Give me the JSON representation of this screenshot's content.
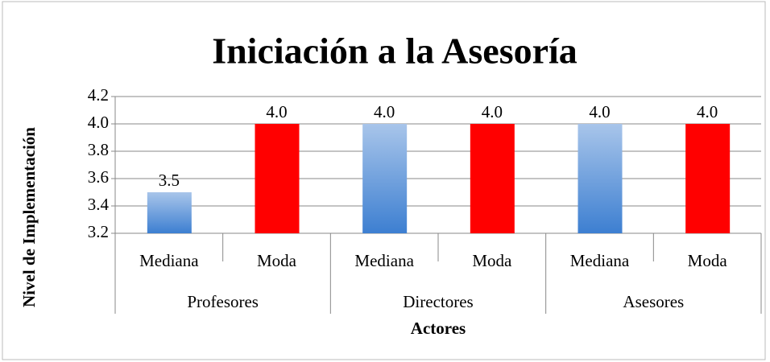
{
  "chart_data": {
    "type": "bar",
    "title": "Iniciación a la Asesoría",
    "x_label": "Actores",
    "y_label": "Nivel de Implementación",
    "categories": [
      "Mediana",
      "Moda",
      "Mediana",
      "Moda",
      "Mediana",
      "Moda"
    ],
    "groups": [
      "Profesores",
      "Directores",
      "Asesores"
    ],
    "values": [
      3.5,
      4,
      4,
      4,
      4,
      4
    ],
    "value_labels": [
      "3.5",
      "4.0",
      "4.0",
      "4.0",
      "4.0",
      "4.0"
    ],
    "colors": [
      "#3d7fd1",
      "#ff0000",
      "#3d7fd1",
      "#ff0000",
      "#3d7fd1",
      "#ff0000"
    ],
    "ylim": [
      3.2,
      4.2
    ],
    "yticks": [
      3.2,
      3.4,
      3.6,
      3.8,
      {
        "value": 4,
        "label": "4.0"
      },
      4.2
    ],
    "grid": true
  }
}
